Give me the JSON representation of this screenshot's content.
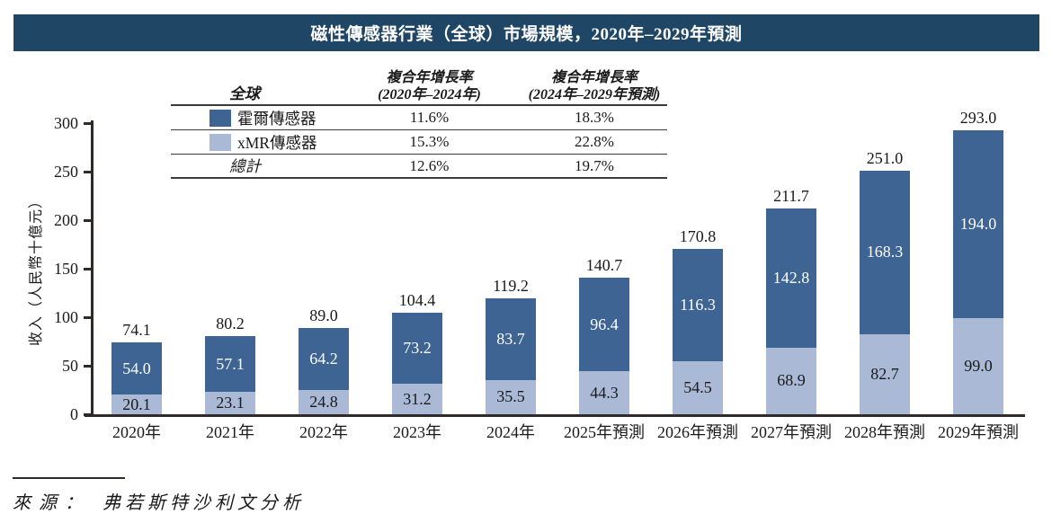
{
  "title": "磁性傳感器行業（全球）市場規模，2020年–2029年預測",
  "legend_table": {
    "header": {
      "col1": "全球",
      "col2_line1": "複合年增長率",
      "col2_line2": "(2020年–2024年)",
      "col3_line1": "複合年增長率",
      "col3_line2": "(2024年–2029年預測)"
    },
    "rows": [
      {
        "label": "霍爾傳感器",
        "swatch": "#3E6494",
        "cagr_2020_2024": "11.6%",
        "cagr_2024_2029": "18.3%"
      },
      {
        "label": "xMR傳感器",
        "swatch": "#A9B9D6",
        "cagr_2020_2024": "15.3%",
        "cagr_2024_2029": "22.8%"
      },
      {
        "label": "總計",
        "swatch": null,
        "cagr_2020_2024": "12.6%",
        "cagr_2024_2029": "19.7%"
      }
    ]
  },
  "chart_data": {
    "type": "bar",
    "stacked": true,
    "title": "磁性傳感器行業（全球）市場規模，2020年–2029年預測",
    "categories": [
      "2020年",
      "2021年",
      "2022年",
      "2023年",
      "2024年",
      "2025年預測",
      "2026年預測",
      "2027年預測",
      "2028年預測",
      "2029年預測"
    ],
    "series": [
      {
        "name": "xMR傳感器",
        "color": "#A9B9D6",
        "values": [
          20.1,
          23.1,
          24.8,
          31.2,
          35.5,
          44.3,
          54.5,
          68.9,
          82.7,
          99.0
        ]
      },
      {
        "name": "霍爾傳感器",
        "color": "#3E6494",
        "values": [
          54.0,
          57.1,
          64.2,
          73.2,
          83.7,
          96.4,
          116.3,
          142.8,
          168.3,
          194.0
        ]
      }
    ],
    "totals": [
      74.1,
      80.2,
      89.0,
      104.4,
      119.2,
      140.7,
      170.8,
      211.7,
      251.0,
      293.0
    ],
    "xlabel": "",
    "ylabel": "收入（人民幣十億元）",
    "ylim": [
      0,
      300
    ],
    "yticks": [
      0,
      50,
      100,
      150,
      200,
      250,
      300
    ],
    "grid": false,
    "legend_position": "top-left-table"
  },
  "source": {
    "label": "來源：",
    "text": "弗若斯特沙利文分析"
  },
  "colors": {
    "title_bar": "#204666",
    "axis": "#2f2a28",
    "hall": "#3E6494",
    "xmr": "#A9B9D6"
  }
}
